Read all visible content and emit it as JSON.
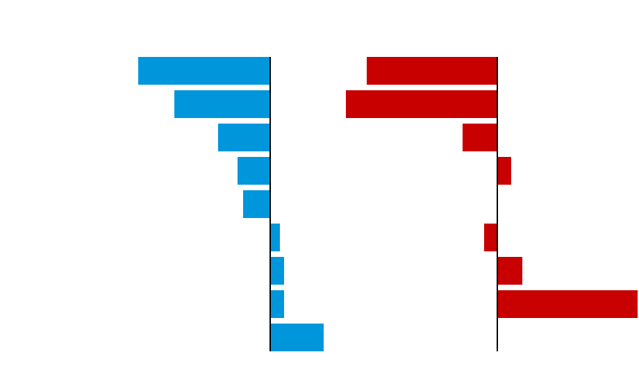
{
  "chart_data": [
    {
      "type": "bar",
      "orientation": "horizontal",
      "color": "#0096dc",
      "values": [
        -190,
        -138,
        -75,
        -47,
        -39,
        14,
        20,
        20,
        77
      ],
      "xlim": [
        -290,
        90
      ]
    },
    {
      "type": "bar",
      "orientation": "horizontal",
      "color": "#c80000",
      "values": [
        -188,
        -218,
        -50,
        20,
        0,
        -19,
        36,
        202,
        0
      ],
      "xlim": [
        -218,
        202
      ]
    }
  ]
}
